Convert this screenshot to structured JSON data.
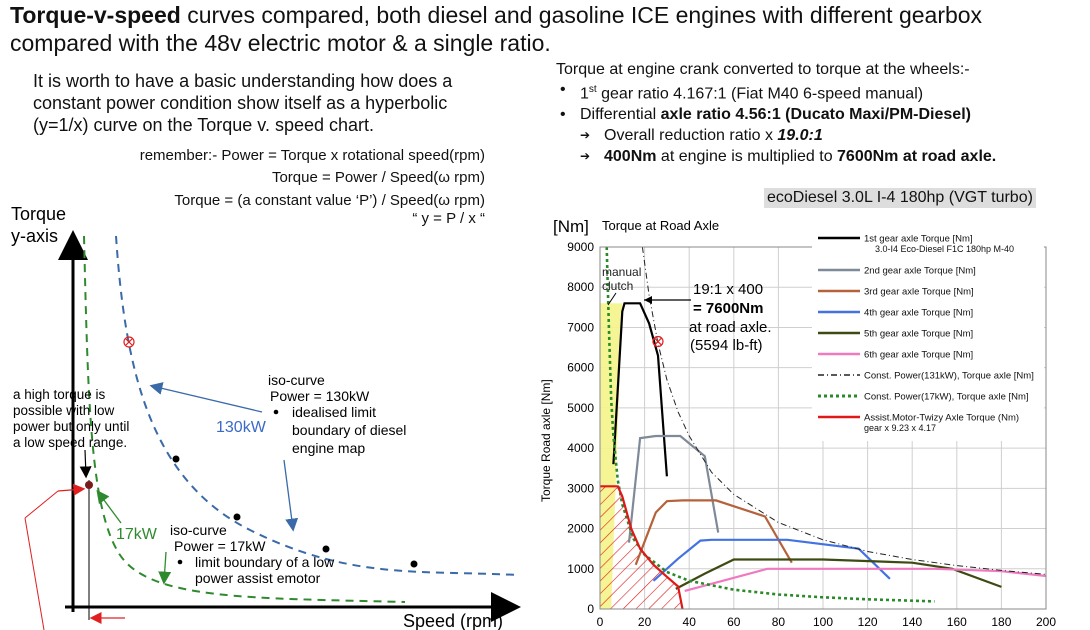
{
  "header": {
    "title_bold": "Torque-v-speed",
    "title_rest": " curves compared,  both diesel and gasoline ICE engines with different gearbox",
    "title_line2": "compared with the 48v electric motor & a single ratio."
  },
  "left_panel": {
    "intro": "It is worth to have a basic understanding how does a constant power condition show itself as a hyperbolic (y=1/x) curve on the Torque v. speed chart.",
    "formula1": "remember:-  Power = Torque x rotational speed(rpm)",
    "formula2": "Torque = Power / Speed(ω rpm)",
    "formula3": "Torque = (a constant value ‘P’) / Speed(ω rpm)",
    "formula4": "“ y = P / x “",
    "y_axis_label_1": "Torque",
    "y_axis_label_2": "y-axis",
    "x_axis_label": "Speed (rpm)",
    "note_high_torque": [
      "a high torque is",
      "possible with low",
      "power but only until",
      "a low speed range."
    ],
    "iso130_title": "iso-curve",
    "iso130_power": "Power = 130kW",
    "iso130_desc": [
      "idealised limit",
      "boundary of diesel",
      "engine map"
    ],
    "label_130": "130kW",
    "label_17": "17kW",
    "iso17_title": "iso-curve",
    "iso17_power": "Power = 17kW",
    "iso17_desc": [
      "limit boundary of a low",
      "power assist emotor"
    ],
    "colors": {
      "curve130": "#3a6aa8",
      "curve17": "#2f8a2f",
      "label130": "#3a6ac8",
      "label17": "#2f8a2f",
      "arrow_red": "#e02020"
    }
  },
  "right_panel": {
    "heading": "Torque at engine crank converted to torque at the wheels:-",
    "bullet1_pre": "1",
    "bullet1_sup": "st",
    "bullet1_post": " gear ratio 4.167:1  (Fiat M40 6-speed manual)",
    "bullet2_pre": "Differential ",
    "bullet2_bold": "axle ratio 4.56:1 (Ducato Maxi/PM-Diesel)",
    "sub1_pre": "Overall reduction ratio x ",
    "sub1_bold": "19.0:1",
    "sub2_bold1": "400Nm",
    "sub2_mid": " at engine is multiplied to ",
    "sub2_bold2": "7600Nm at road axle.",
    "engine_label": "ecoDiesel 3.0L I-4 180hp (VGT turbo)"
  },
  "chart_data": {
    "type": "line",
    "title": "Torque at Road Axle",
    "unit_label": "[Nm]",
    "ylabel": "Torque Road axle [Nm]",
    "xlabel": "",
    "xlim": [
      0,
      200
    ],
    "ylim": [
      0,
      9000
    ],
    "x_ticks": [
      0,
      20,
      40,
      60,
      80,
      100,
      120,
      140,
      160,
      180,
      200
    ],
    "y_ticks": [
      0,
      1000,
      2000,
      3000,
      4000,
      5000,
      6000,
      7000,
      8000,
      9000
    ],
    "grid": true,
    "legend_position": "top-right",
    "annotations": {
      "manual_clutch": "manual\nclutch",
      "callout_line1": "19:1 x 400",
      "callout_line2": "= 7600Nm",
      "callout_line3": "at road axle.",
      "callout_line4": "(5594 lb-ft)"
    },
    "series": [
      {
        "name": "1st gear axle Torque [Nm]",
        "subname": "3.0-I4 Eco-Diesel F1C 180hp M-40",
        "color": "#000000",
        "dash": "solid",
        "x": [
          6,
          10,
          11,
          18,
          22,
          26,
          30
        ],
        "y": [
          3600,
          7400,
          7600,
          7600,
          7100,
          6300,
          3300
        ]
      },
      {
        "name": "2nd gear axle Torque  [Nm]",
        "color": "#7f8a99",
        "dash": "solid",
        "x": [
          13,
          18,
          25,
          36,
          47,
          53
        ],
        "y": [
          1650,
          4250,
          4300,
          4300,
          3800,
          1900
        ]
      },
      {
        "name": "3rd gear axle Torque  [Nm]",
        "color": "#b5623a",
        "dash": "solid",
        "x": [
          16,
          25,
          30,
          37,
          52,
          74,
          86
        ],
        "y": [
          1100,
          2400,
          2680,
          2700,
          2700,
          2300,
          1150
        ]
      },
      {
        "name": "4th gear axle Torque  [Nm]",
        "color": "#4472e0",
        "dash": "solid",
        "x": [
          24,
          35,
          45,
          50,
          84,
          116,
          130
        ],
        "y": [
          700,
          1250,
          1700,
          1720,
          1720,
          1500,
          750
        ]
      },
      {
        "name": "5th gear axle Torque  [Nm]",
        "color": "#3d4a12",
        "dash": "solid",
        "x": [
          34,
          47,
          60,
          72,
          100,
          140,
          158,
          180
        ],
        "y": [
          500,
          880,
          1230,
          1230,
          1230,
          1150,
          1000,
          550
        ]
      },
      {
        "name": "6th gear axle Torque [Nm]",
        "color": "#f07ac0",
        "dash": "solid",
        "x": [
          38,
          55,
          75,
          100,
          150,
          180,
          200
        ],
        "y": [
          450,
          700,
          1000,
          1000,
          1000,
          940,
          820
        ]
      },
      {
        "name": "Const. Power(131kW), Torque axle [Nm]",
        "color": "#222222",
        "dash": "dashdot",
        "x": [
          19,
          22,
          26,
          30,
          35,
          40,
          50,
          60,
          80,
          100,
          120,
          140,
          160,
          180,
          200
        ],
        "y": [
          9000,
          7800,
          6600,
          5700,
          4900,
          4300,
          3400,
          2850,
          2150,
          1720,
          1430,
          1230,
          1080,
          960,
          860
        ]
      },
      {
        "name": "Const. Power(17kW), Torque axle [Nm]",
        "color": "#2a8a2a",
        "dash": "dotted",
        "x": [
          3,
          4,
          5,
          6,
          8,
          10,
          15,
          20,
          30,
          40,
          60,
          80,
          100,
          120,
          150
        ],
        "y": [
          9000,
          7000,
          5200,
          4300,
          3200,
          2600,
          1750,
          1350,
          920,
          700,
          480,
          360,
          290,
          240,
          190
        ]
      },
      {
        "name": "Assist.Motor-Twizy Axle Torque (Nm)",
        "subname": "gear x 9.23 x 4.17",
        "color": "#e01818",
        "dash": "solid",
        "x": [
          0,
          8,
          10,
          14,
          18,
          24,
          30,
          35,
          37
        ],
        "y": [
          3050,
          3050,
          2800,
          2000,
          1500,
          1100,
          800,
          560,
          0
        ]
      }
    ],
    "markers": {
      "red_circle_130": {
        "x": 26,
        "y": 6650
      }
    }
  }
}
